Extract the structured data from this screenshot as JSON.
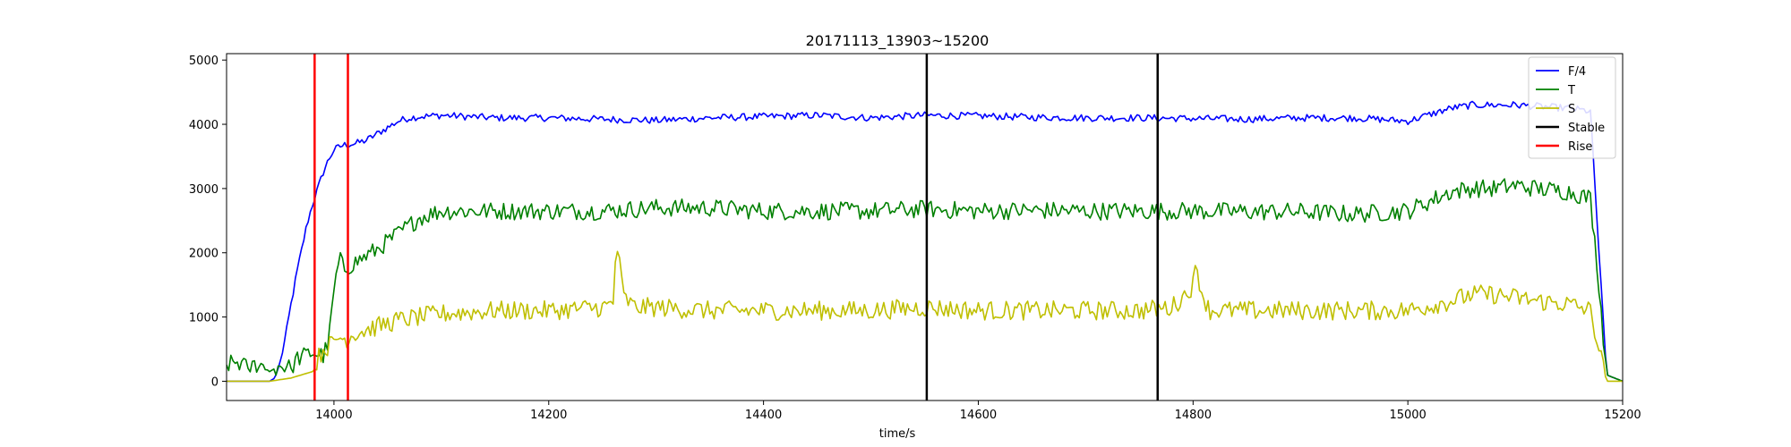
{
  "chart_data": {
    "type": "line",
    "title": "20171113_13903~15200",
    "xlabel": "time/s",
    "ylabel": "",
    "xlim": [
      13900,
      15200
    ],
    "ylim": [
      -300,
      5100
    ],
    "xticks": [
      14000,
      14200,
      14400,
      14600,
      14800,
      15000,
      15200
    ],
    "yticks": [
      0,
      1000,
      2000,
      3000,
      4000,
      5000
    ],
    "grid": false,
    "legend_position": "top-right",
    "series": [
      {
        "name": "F/4",
        "color": "#0000ff",
        "x": [
          13900,
          13940,
          13945,
          13950,
          13955,
          13960,
          13965,
          13970,
          13975,
          13980,
          13985,
          13990,
          13995,
          14000,
          14005,
          14010,
          14020,
          14030,
          14040,
          14050,
          14060,
          14070,
          14080,
          14090,
          14100,
          14150,
          14200,
          14250,
          14300,
          14350,
          14400,
          14450,
          14500,
          14550,
          14600,
          14650,
          14700,
          14750,
          14800,
          14850,
          14900,
          14950,
          15000,
          15020,
          15040,
          15060,
          15080,
          15100,
          15120,
          15150,
          15170,
          15178,
          15185,
          15200
        ],
        "values": [
          0,
          0,
          50,
          300,
          700,
          1200,
          1650,
          2050,
          2450,
          2750,
          3000,
          3250,
          3450,
          3600,
          3650,
          3680,
          3700,
          3750,
          3850,
          3950,
          4050,
          4100,
          4120,
          4130,
          4140,
          4100,
          4100,
          4080,
          4060,
          4100,
          4120,
          4140,
          4100,
          4140,
          4130,
          4110,
          4100,
          4100,
          4090,
          4080,
          4100,
          4100,
          4050,
          4150,
          4250,
          4300,
          4300,
          4300,
          4280,
          4250,
          4200,
          2000,
          100,
          0
        ]
      },
      {
        "name": "T",
        "color": "#008000",
        "x": [
          13900,
          13910,
          13920,
          13930,
          13940,
          13950,
          13960,
          13965,
          13970,
          13980,
          13990,
          13995,
          14000,
          14005,
          14010,
          14020,
          14040,
          14060,
          14080,
          14100,
          14150,
          14200,
          14250,
          14300,
          14350,
          14400,
          14450,
          14500,
          14550,
          14600,
          14650,
          14700,
          14750,
          14800,
          14850,
          14900,
          14950,
          15000,
          15020,
          15040,
          15060,
          15080,
          15100,
          15120,
          15150,
          15170,
          15178,
          15185,
          15200
        ],
        "values": [
          250,
          300,
          200,
          280,
          150,
          250,
          200,
          350,
          380,
          450,
          400,
          600,
          1400,
          1900,
          1750,
          1850,
          2050,
          2300,
          2550,
          2650,
          2650,
          2650,
          2650,
          2700,
          2700,
          2650,
          2650,
          2650,
          2680,
          2650,
          2660,
          2650,
          2650,
          2650,
          2640,
          2640,
          2600,
          2650,
          2800,
          2950,
          3000,
          3000,
          3050,
          3000,
          2950,
          2850,
          1500,
          100,
          0
        ]
      },
      {
        "name": "S",
        "color": "#bfbf00",
        "x": [
          13900,
          13940,
          13960,
          13970,
          13980,
          13985,
          13990,
          14000,
          14005,
          14010,
          14020,
          14040,
          14060,
          14080,
          14100,
          14150,
          14200,
          14250,
          14260,
          14263,
          14266,
          14270,
          14280,
          14300,
          14350,
          14400,
          14450,
          14500,
          14550,
          14600,
          14650,
          14700,
          14750,
          14780,
          14790,
          14800,
          14803,
          14808,
          14815,
          14830,
          14850,
          14900,
          14950,
          15000,
          15040,
          15060,
          15080,
          15100,
          15120,
          15150,
          15170,
          15178,
          15185,
          15200
        ],
        "values": [
          0,
          0,
          50,
          100,
          150,
          350,
          500,
          600,
          700,
          650,
          750,
          850,
          950,
          1000,
          1050,
          1100,
          1100,
          1150,
          1200,
          2200,
          1800,
          1300,
          1150,
          1150,
          1100,
          1100,
          1100,
          1100,
          1150,
          1100,
          1100,
          1100,
          1100,
          1150,
          1300,
          1500,
          1800,
          1400,
          1100,
          1100,
          1100,
          1100,
          1100,
          1100,
          1250,
          1350,
          1350,
          1300,
          1250,
          1200,
          1100,
          500,
          0,
          0
        ]
      },
      {
        "name": "Stable",
        "color": "#000000",
        "vlines": [
          14552,
          14767
        ]
      },
      {
        "name": "Rise",
        "color": "#ff0000",
        "vlines": [
          13982,
          14013
        ]
      }
    ]
  }
}
